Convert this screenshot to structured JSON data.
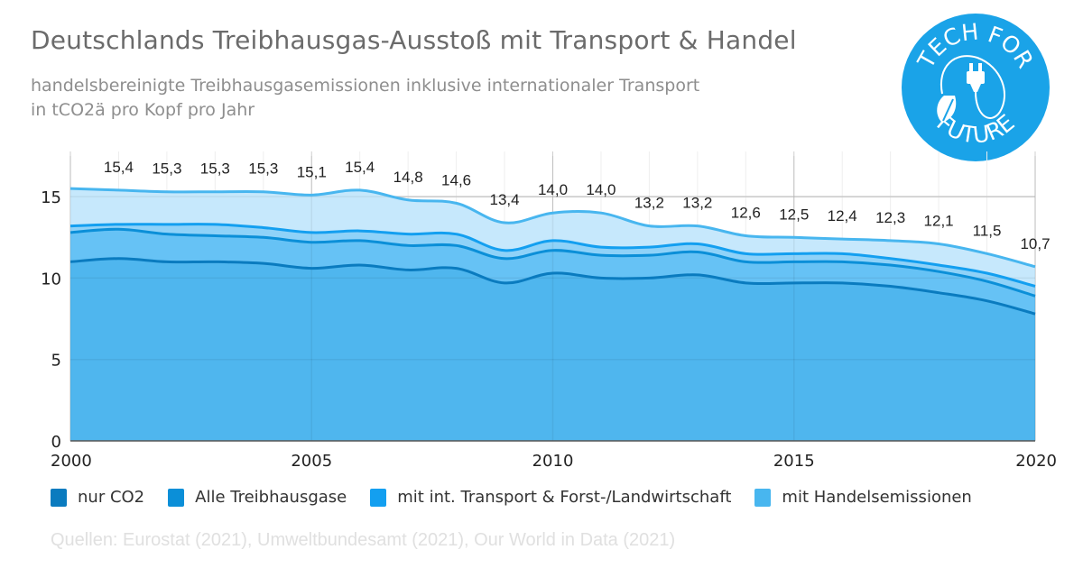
{
  "header": {
    "title": "Deutschlands Treibhausgas-Ausstoß mit Transport & Handel",
    "subtitle_line1": "handelsbereinigte Treibhausgasemissionen inklusive internationaler Transport",
    "subtitle_line2": "in tCO2ä pro Kopf pro Jahr"
  },
  "logo": {
    "text_top": "TECH FOR",
    "text_bottom": "FUTURE",
    "icon": "plug-leaf-icon",
    "color": "#1aa3e8"
  },
  "source": "Quellen: Eurostat (2021), Umweltbundesamt (2021), Our World in Data (2021)",
  "chart_data": {
    "type": "area",
    "title": "Deutschlands Treibhausgas-Ausstoß mit Transport & Handel",
    "subtitle": "handelsbereinigte Treibhausgasemissionen inklusive internationaler Transport in tCO2ä pro Kopf pro Jahr",
    "xlabel": "",
    "ylabel": "",
    "x": [
      2000,
      2001,
      2002,
      2003,
      2004,
      2005,
      2006,
      2007,
      2008,
      2009,
      2010,
      2011,
      2012,
      2013,
      2014,
      2015,
      2016,
      2017,
      2018,
      2019,
      2020
    ],
    "x_ticks": [
      "2000",
      "2005",
      "2010",
      "2015",
      "2020"
    ],
    "x_tick_values": [
      2000,
      2005,
      2010,
      2015,
      2020
    ],
    "y_ticks": [
      "0",
      "5",
      "10",
      "15"
    ],
    "y_tick_values": [
      0,
      5,
      10,
      15
    ],
    "xlim": [
      2000,
      2020
    ],
    "ylim": [
      0,
      17.5
    ],
    "grid": true,
    "legend_position": "bottom",
    "series": [
      {
        "name": "nur CO2",
        "color": "#0a7bbf",
        "fill": "#4fb6ee",
        "values": [
          11.0,
          11.2,
          11.0,
          11.0,
          10.9,
          10.6,
          10.8,
          10.5,
          10.6,
          9.7,
          10.3,
          10.0,
          10.0,
          10.2,
          9.7,
          9.7,
          9.7,
          9.5,
          9.1,
          8.6,
          7.8
        ]
      },
      {
        "name": "Alle Treibhausgase",
        "color": "#0b8fd8",
        "fill": "#66c2f5",
        "values": [
          12.8,
          13.0,
          12.7,
          12.6,
          12.5,
          12.2,
          12.3,
          12.0,
          12.0,
          11.2,
          11.7,
          11.4,
          11.4,
          11.6,
          11.0,
          11.0,
          11.0,
          10.8,
          10.4,
          9.8,
          8.9
        ]
      },
      {
        "name": "mit int. Transport & Forst-/Landwirtschaft",
        "color": "#139ff0",
        "fill": "#8fd2f8",
        "values": [
          13.2,
          13.3,
          13.3,
          13.3,
          13.1,
          12.8,
          12.9,
          12.7,
          12.7,
          11.7,
          12.3,
          11.9,
          11.9,
          12.1,
          11.5,
          11.5,
          11.5,
          11.2,
          10.8,
          10.3,
          9.5
        ]
      },
      {
        "name": "mit Handelsemissionen",
        "color": "#48b6ef",
        "fill": "#c6e8fc",
        "values": [
          15.5,
          15.4,
          15.3,
          15.3,
          15.3,
          15.1,
          15.4,
          14.8,
          14.6,
          13.4,
          14.0,
          14.0,
          13.2,
          13.2,
          12.6,
          12.5,
          12.4,
          12.3,
          12.1,
          11.5,
          10.7
        ],
        "data_labels": [
          "",
          "15,4",
          "15,3",
          "15,3",
          "15,3",
          "15,1",
          "15,4",
          "14,8",
          "14,6",
          "13,4",
          "14,0",
          "14,0",
          "13,2",
          "13,2",
          "12,6",
          "12,5",
          "12,4",
          "12,3",
          "12,1",
          "11,5",
          "10,7"
        ]
      }
    ]
  }
}
